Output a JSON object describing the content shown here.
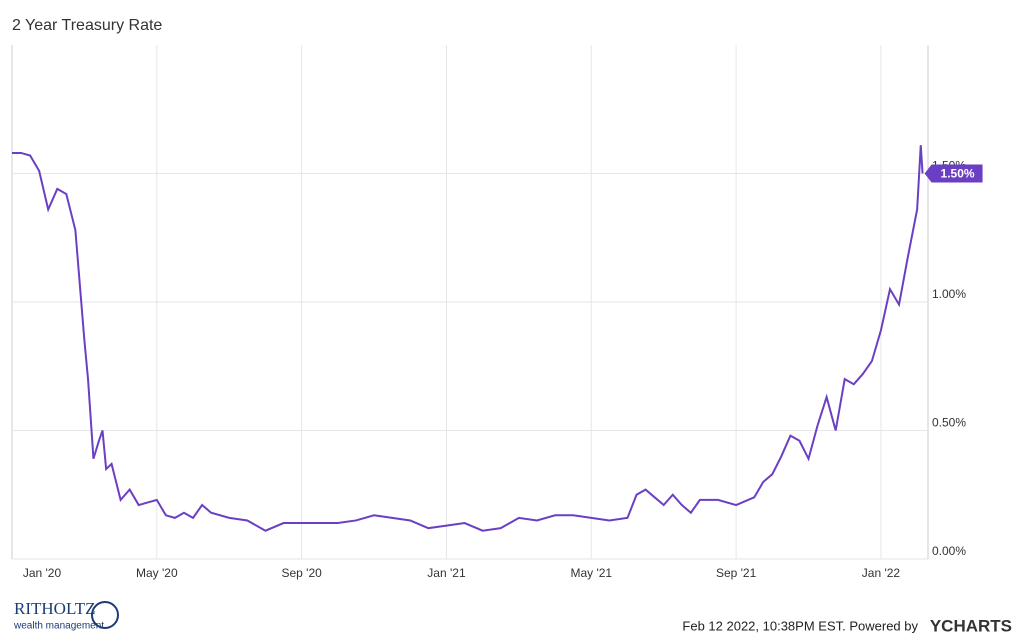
{
  "chart_data": {
    "type": "line",
    "title": "2 Year Treasury Rate",
    "x": [
      0,
      0.25,
      0.5,
      0.75,
      1.0,
      1.25,
      1.5,
      1.75,
      2.0,
      2.1,
      2.25,
      2.4,
      2.5,
      2.6,
      2.75,
      3.0,
      3.25,
      3.5,
      3.75,
      4.0,
      4.25,
      4.5,
      4.75,
      5.0,
      5.25,
      5.5,
      6,
      6.5,
      7,
      7.5,
      8,
      8.5,
      9,
      9.5,
      10,
      10.5,
      11,
      11.5,
      12,
      12.5,
      13,
      13.5,
      14,
      14.5,
      15,
      15.5,
      16,
      16.5,
      17,
      17.25,
      17.5,
      17.75,
      18,
      18.25,
      18.5,
      18.75,
      19,
      19.5,
      20,
      20.5,
      20.75,
      21,
      21.25,
      21.5,
      21.75,
      22,
      22.25,
      22.5,
      22.75,
      23,
      23.25,
      23.5,
      23.75,
      24,
      24.25,
      24.5,
      24.75,
      25,
      25.1,
      25.15
    ],
    "values": [
      1.58,
      1.58,
      1.57,
      1.51,
      1.36,
      1.44,
      1.42,
      1.28,
      0.85,
      0.7,
      0.39,
      0.46,
      0.5,
      0.35,
      0.37,
      0.23,
      0.27,
      0.21,
      0.22,
      0.23,
      0.17,
      0.16,
      0.18,
      0.16,
      0.21,
      0.18,
      0.16,
      0.15,
      0.11,
      0.14,
      0.14,
      0.14,
      0.14,
      0.15,
      0.17,
      0.16,
      0.15,
      0.12,
      0.13,
      0.14,
      0.11,
      0.12,
      0.16,
      0.15,
      0.17,
      0.17,
      0.16,
      0.15,
      0.16,
      0.25,
      0.27,
      0.24,
      0.21,
      0.25,
      0.21,
      0.18,
      0.23,
      0.23,
      0.21,
      0.24,
      0.3,
      0.33,
      0.4,
      0.48,
      0.46,
      0.39,
      0.52,
      0.63,
      0.5,
      0.7,
      0.68,
      0.72,
      0.77,
      0.89,
      1.05,
      0.99,
      1.18,
      1.36,
      1.61,
      1.5
    ],
    "color": "#6b3fc4",
    "xlim": [
      0,
      25.3
    ],
    "xticks": [
      {
        "value": 0,
        "label": "Jan '20"
      },
      {
        "value": 4,
        "label": "May '20"
      },
      {
        "value": 8,
        "label": "Sep '20"
      },
      {
        "value": 12,
        "label": "Jan '21"
      },
      {
        "value": 16,
        "label": "May '21"
      },
      {
        "value": 20,
        "label": "Sep '21"
      },
      {
        "value": 24,
        "label": "Jan '22"
      }
    ],
    "ylim": [
      0,
      2.0
    ],
    "yticks": [
      {
        "value": 0,
        "label": "0.00%"
      },
      {
        "value": 0.5,
        "label": "0.50%"
      },
      {
        "value": 1.0,
        "label": "1.00%"
      },
      {
        "value": 1.5,
        "label": "1.50%"
      }
    ],
    "grid": true,
    "annotations": [
      {
        "x": 25.15,
        "y": 1.5,
        "label": "1.50%"
      }
    ]
  },
  "footer": {
    "brand": "RITHOLTZ",
    "brand_sub": "wealth management",
    "timestamp": "Feb 12 2022, 10:38PM EST. Powered by",
    "provider": "YCHARTS"
  }
}
